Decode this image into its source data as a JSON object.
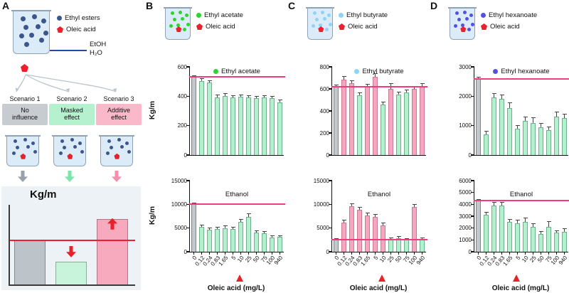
{
  "panel_a": {
    "label": "A",
    "legend": {
      "ester_label": "Ethyl esters",
      "ester_color": "#3a568d",
      "oleic_label": "Oleic acid",
      "oleic_color": "#e8212d"
    },
    "solvent_top": "EtOH",
    "solvent_bottom": "H₂O",
    "scenarios": [
      {
        "title": "Scenario 1",
        "effect": "No influence",
        "color": "#c7ccd1"
      },
      {
        "title": "Scenario 2",
        "effect": "Masked effect",
        "color": "#b5f1ce"
      },
      {
        "title": "Scenario 3",
        "effect": "Additive effect",
        "color": "#f9b9ca"
      }
    ],
    "arrow_colors": [
      "#98a2aa",
      "#7fe3ac",
      "#f58fae"
    ],
    "mini_chart": {
      "ylabel": "Kg/m",
      "refline_color": "#e8212d",
      "refline_pct": 55,
      "bars": [
        {
          "name": "no-influence",
          "color": "#bdc4c9",
          "height_pct": 55,
          "arrow": null
        },
        {
          "name": "masked-effect",
          "color": "#c9f4dc",
          "height_pct": 29,
          "arrow": "down"
        },
        {
          "name": "additive-effect",
          "color": "#f7a9be",
          "height_pct": 82,
          "arrow": "up"
        }
      ]
    }
  },
  "panels": [
    {
      "label": "B",
      "ester": "Ethyl acetate",
      "ester_color": "#2fd32f",
      "oleic": "Oleic acid",
      "oleic_color": "#e8212d",
      "xlabel": "Oleic acid (mg/L)"
    },
    {
      "label": "C",
      "ester": "Ethyl butyrate",
      "ester_color": "#8ed4f4",
      "oleic": "Oleic acid",
      "oleic_color": "#e8212d",
      "xlabel": "Oleic acid (mg/L)"
    },
    {
      "label": "D",
      "ester": "Ethyl hexanoate",
      "ester_color": "#5450e0",
      "oleic": "Oleic acid",
      "oleic_color": "#e8212d",
      "xlabel": "Oleic acid (mg/L)"
    }
  ],
  "bar_styles": {
    "control": {
      "fill": "#c3c8cd",
      "edge": "#7d858c"
    },
    "green": {
      "fill": "#b2f0ce",
      "edge": "#6fae8c"
    },
    "pink": {
      "fill": "#f6a6bf",
      "edge": "#c97a93"
    }
  },
  "refline_color": "#f23b7d",
  "marker_color": "#e8212d",
  "chart_data": [
    {
      "id": "b_top",
      "panel": "B",
      "type": "bar",
      "title": "Ethyl acetate",
      "title_dot": "#2fd32f",
      "ylabel": "Kg/m",
      "ylim": [
        0,
        600
      ],
      "yticks": [
        0,
        200,
        400,
        600
      ],
      "refline": 530,
      "categories": [
        "0",
        "0.12",
        "0.24",
        "0.83",
        "1.65",
        "5",
        "10",
        "25",
        "50",
        "75",
        "100",
        "940"
      ],
      "values": [
        530,
        505,
        495,
        390,
        400,
        390,
        395,
        390,
        385,
        390,
        385,
        360
      ],
      "errors": [
        8,
        12,
        10,
        15,
        18,
        12,
        10,
        10,
        10,
        14,
        10,
        12
      ],
      "bar_types": [
        "control",
        "green",
        "green",
        "green",
        "green",
        "green",
        "green",
        "green",
        "green",
        "green",
        "green",
        "green"
      ]
    },
    {
      "id": "b_bottom",
      "panel": "B",
      "type": "bar",
      "title": "Ethanol",
      "title_dot": null,
      "ylabel": "Kg/m",
      "ylim": [
        0,
        15000
      ],
      "yticks": [
        0,
        5000,
        10000,
        15000
      ],
      "refline": 10000,
      "categories": [
        "0",
        "0.12",
        "0.24",
        "0.83",
        "1.65",
        "5",
        "10",
        "25",
        "50",
        "75",
        "100",
        "940"
      ],
      "values": [
        10000,
        5200,
        4600,
        4800,
        5000,
        4800,
        6300,
        7400,
        4100,
        3900,
        3000,
        3100
      ],
      "errors": [
        150,
        350,
        300,
        350,
        400,
        350,
        450,
        600,
        300,
        300,
        250,
        250
      ],
      "bar_types": [
        "control",
        "green",
        "green",
        "green",
        "green",
        "green",
        "green",
        "green",
        "green",
        "green",
        "green",
        "green"
      ],
      "triangle_at": 6,
      "xlabel": "Oleic acid (mg/L)"
    },
    {
      "id": "c_top",
      "panel": "C",
      "type": "bar",
      "title": "Ethyl butyrate",
      "title_dot": "#8ed4f4",
      "ylim": [
        0,
        800
      ],
      "yticks": [
        0,
        200,
        400,
        600,
        800
      ],
      "refline": 620,
      "categories": [
        "0",
        "0.12",
        "0.24",
        "0.83",
        "1.65",
        "5",
        "10",
        "25",
        "50",
        "75",
        "100",
        "940"
      ],
      "values": [
        620,
        685,
        650,
        545,
        620,
        710,
        455,
        600,
        550,
        570,
        600,
        625
      ],
      "errors": [
        10,
        25,
        20,
        18,
        20,
        28,
        22,
        45,
        15,
        18,
        22,
        20
      ],
      "bar_types": [
        "control",
        "pink",
        "pink",
        "green",
        "pink",
        "pink",
        "green",
        "pink",
        "green",
        "green",
        "pink",
        "pink"
      ]
    },
    {
      "id": "c_bottom",
      "panel": "C",
      "type": "bar",
      "title": "Ethanol",
      "title_dot": null,
      "ylim": [
        0,
        15000
      ],
      "yticks": [
        0,
        5000,
        10000,
        15000
      ],
      "refline": 2500,
      "categories": [
        "0",
        "0.12",
        "0.24",
        "0.83",
        "1.65",
        "5",
        "10",
        "25",
        "50",
        "75",
        "100",
        "940"
      ],
      "values": [
        2500,
        6100,
        9600,
        8800,
        7600,
        7300,
        5600,
        2600,
        2800,
        2500,
        9400,
        2600
      ],
      "errors": [
        150,
        450,
        450,
        500,
        550,
        450,
        450,
        250,
        300,
        250,
        550,
        250
      ],
      "bar_types": [
        "control",
        "pink",
        "pink",
        "pink",
        "pink",
        "pink",
        "pink",
        "green",
        "green",
        "green",
        "pink",
        "green"
      ],
      "triangle_at": 6,
      "xlabel": "Oleic acid (mg/L)"
    },
    {
      "id": "d_top",
      "panel": "D",
      "type": "bar",
      "title": "Ethyl hexanoate",
      "title_dot": "#5450e0",
      "ylim": [
        0,
        3000
      ],
      "yticks": [
        0,
        1000,
        2000,
        3000
      ],
      "refline": 2600,
      "categories": [
        "0",
        "0.12",
        "0.24",
        "0.83",
        "1.65",
        "5",
        "10",
        "25",
        "50",
        "75",
        "100",
        "940"
      ],
      "values": [
        2600,
        700,
        1950,
        1900,
        1600,
        900,
        1150,
        1100,
        950,
        850,
        1300,
        1250
      ],
      "errors": [
        40,
        90,
        130,
        130,
        160,
        90,
        130,
        160,
        110,
        90,
        160,
        130
      ],
      "bar_types": [
        "control",
        "green",
        "green",
        "green",
        "green",
        "green",
        "green",
        "green",
        "green",
        "green",
        "green",
        "green"
      ]
    },
    {
      "id": "d_bottom",
      "panel": "D",
      "type": "bar",
      "title": "Ethanol",
      "title_dot": null,
      "ylim": [
        0,
        6000
      ],
      "yticks": [
        0,
        1000,
        2000,
        3000,
        4000,
        5000,
        6000
      ],
      "refline": 4300,
      "categories": [
        "0",
        "0.12",
        "0.24",
        "0.83",
        "1.65",
        "5",
        "10",
        "25",
        "50",
        "75",
        "100",
        "940"
      ],
      "values": [
        4300,
        3100,
        3900,
        3900,
        2500,
        2400,
        2500,
        2100,
        1500,
        2100,
        1600,
        1700
      ],
      "errors": [
        80,
        220,
        260,
        260,
        220,
        220,
        320,
        260,
        160,
        420,
        160,
        220
      ],
      "bar_types": [
        "control",
        "green",
        "green",
        "green",
        "green",
        "green",
        "green",
        "green",
        "green",
        "green",
        "green",
        "green"
      ],
      "triangle_at": 5,
      "xlabel": "Oleic acid (mg/L)"
    }
  ]
}
